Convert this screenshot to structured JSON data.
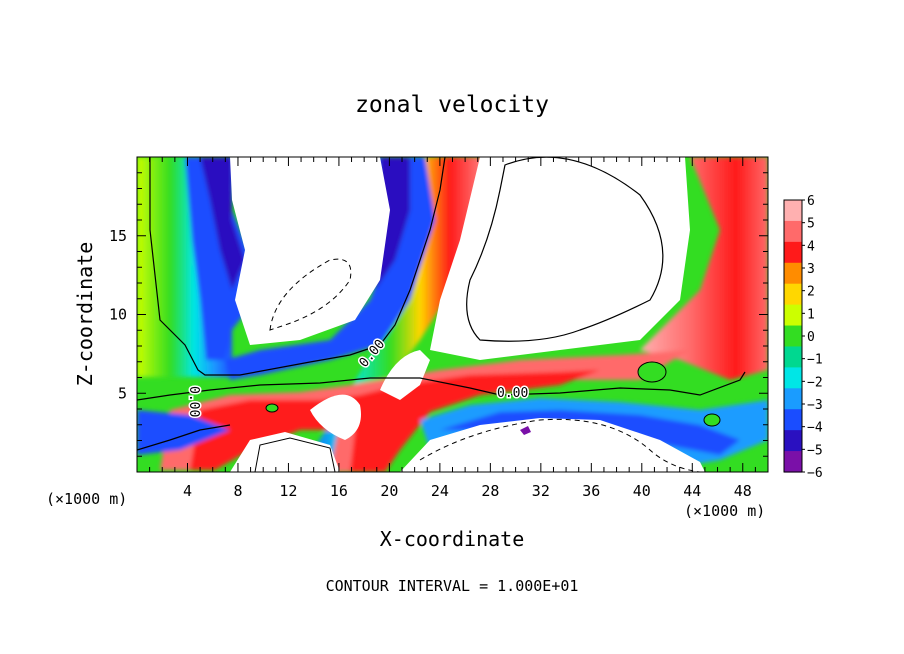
{
  "chart_data": {
    "type": "heatmap",
    "title": "zonal velocity",
    "xlabel": "X-coordinate",
    "ylabel": "Z-coordinate",
    "x_unit": "(×1000 m)",
    "x_unit_right": "(×1000 m)",
    "footer": "CONTOUR INTERVAL = 1.000E+01",
    "xlim": [
      0,
      50
    ],
    "ylim": [
      0,
      20
    ],
    "x_ticks": [
      "4",
      "8",
      "12",
      "16",
      "20",
      "24",
      "28",
      "32",
      "36",
      "40",
      "44",
      "48"
    ],
    "y_ticks": [
      "5",
      "10",
      "15"
    ],
    "colorbar": {
      "min": -6,
      "max": 6,
      "labels": [
        "6",
        "5",
        "4",
        "3",
        "2",
        "1",
        "0",
        "−1",
        "−2",
        "−3",
        "−4",
        "−5",
        "−6"
      ],
      "colors": [
        "#ffb0b0",
        "#ff6a6a",
        "#ff1a1a",
        "#ff8c00",
        "#ffd700",
        "#ccff00",
        "#33dd22",
        "#00d890",
        "#00e6e6",
        "#1a9cff",
        "#1a4dff",
        "#2a10c0",
        "#7a10a8"
      ]
    },
    "contour_labels": [
      "0.00",
      "0.00",
      "0.00"
    ],
    "grid": false,
    "legend": "colorbar-right"
  }
}
